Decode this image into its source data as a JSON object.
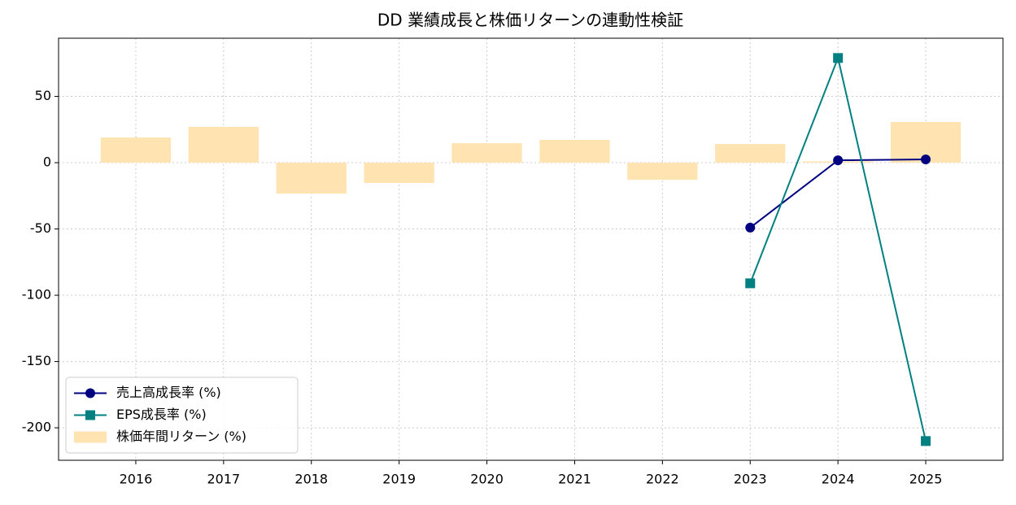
{
  "chart_data": {
    "type": "bar-line",
    "title": "DD 業績成長と株価リターンの連動性検証",
    "x": [
      2016,
      2017,
      2018,
      2019,
      2020,
      2021,
      2022,
      2023,
      2024,
      2025
    ],
    "xlim": [
      2015.12,
      2025.88
    ],
    "xticks": [
      2016,
      2017,
      2018,
      2019,
      2020,
      2021,
      2022,
      2023,
      2024,
      2025
    ],
    "ylim": [
      -224.5,
      93.9
    ],
    "yticks": [
      -200,
      -150,
      -100,
      -50,
      0,
      50
    ],
    "grid": true,
    "legend": "lower left",
    "series": [
      {
        "name": "売上高成長率 (%)",
        "kind": "line",
        "marker": "circle",
        "color": "#000080",
        "values": [
          null,
          null,
          null,
          null,
          null,
          null,
          null,
          -49,
          1.8,
          2.5
        ]
      },
      {
        "name": "EPS成長率 (%)",
        "kind": "line",
        "marker": "square",
        "color": "#008080",
        "values": [
          null,
          null,
          null,
          null,
          null,
          null,
          null,
          -91,
          79,
          -210
        ]
      },
      {
        "name": "株価年間リターン (%)",
        "kind": "bar",
        "color": "#ffe4b2",
        "values": [
          19,
          27,
          -23.3,
          -15.3,
          14.7,
          17.2,
          -12.9,
          14.1,
          1,
          30.7
        ]
      }
    ]
  }
}
